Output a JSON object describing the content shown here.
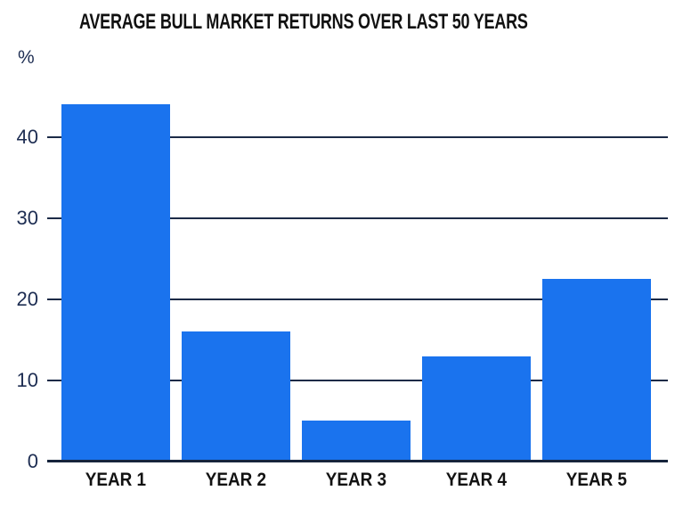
{
  "chart_data": {
    "type": "bar",
    "title": "AVERAGE BULL MARKET RETURNS OVER LAST 50 YEARS",
    "unit_label": "%",
    "categories": [
      "YEAR 1",
      "YEAR 2",
      "YEAR 3",
      "YEAR 4",
      "YEAR 5"
    ],
    "values": [
      44,
      16,
      5,
      13,
      22.5
    ],
    "xlabel": "",
    "ylabel": "%",
    "ylim": [
      0,
      46
    ],
    "yticks": [
      0,
      10,
      20,
      30,
      40
    ],
    "grid": "horizontal-gridlines-on",
    "legend": "none",
    "colors": {
      "bar": "#1a73ee",
      "grid": "#1c2b47",
      "axis": "#16243c",
      "tick_text": "#1d2d52",
      "title_text": "#111111",
      "category_text": "#121212",
      "background": "#ffffff"
    }
  }
}
